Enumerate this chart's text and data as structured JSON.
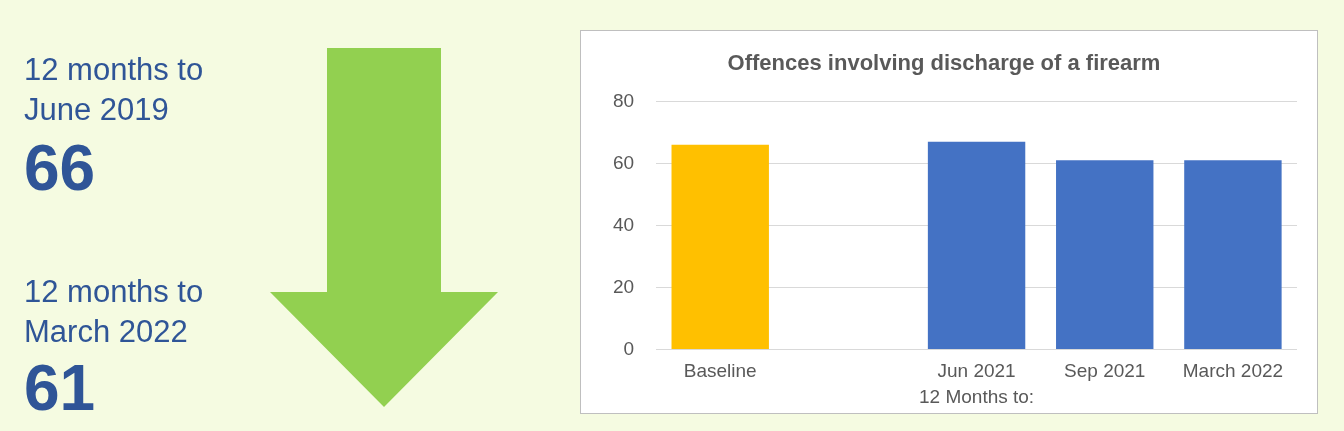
{
  "chart_data": [
    {
      "type": "other",
      "annotations": [
        "12 months to June 2019",
        "66",
        "12 months to March 2022",
        "61"
      ]
    },
    {
      "type": "bar",
      "title": "Offences involving discharge of a firearm",
      "xlabel": "12 Months to:",
      "categories": [
        "Baseline",
        null,
        "Jun 2021",
        "Sep 2021",
        "March 2022"
      ],
      "values": [
        66,
        null,
        67,
        61,
        61
      ],
      "colors": [
        "#ffc000",
        "#4472c4",
        "#4472c4",
        "#4472c4",
        "#4472c4"
      ],
      "ylim": [
        0,
        80
      ],
      "yticks": [
        0,
        20,
        40,
        60,
        80
      ],
      "grid": "y",
      "legend": false
    }
  ]
}
